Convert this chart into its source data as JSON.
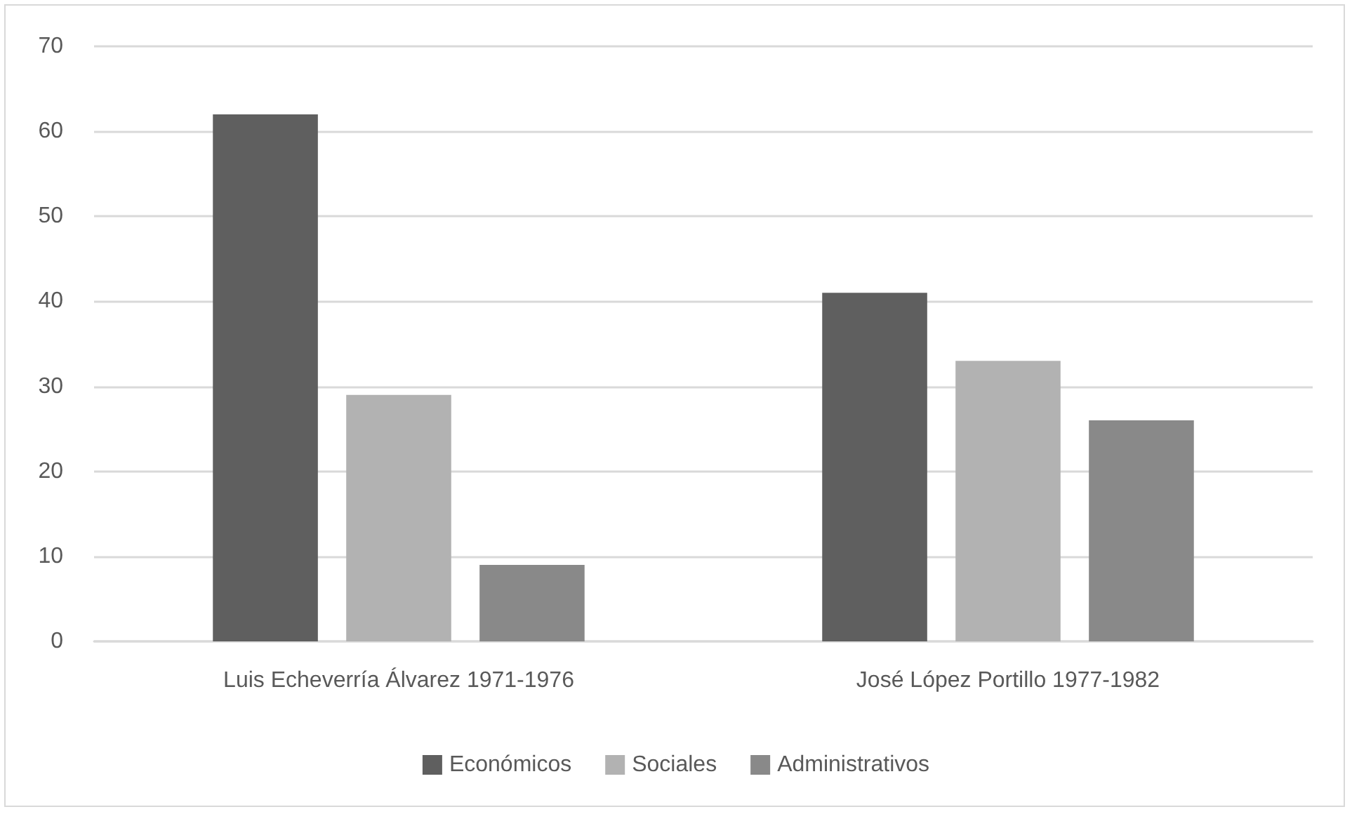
{
  "chart_data": {
    "type": "bar",
    "categories": [
      "Luis Echeverría Álvarez 1971-1976",
      "José López Portillo 1977-1982"
    ],
    "series": [
      {
        "name": "Económicos",
        "color": "#5f5f5f",
        "values": [
          62,
          41
        ]
      },
      {
        "name": "Sociales",
        "color": "#b2b2b2",
        "values": [
          29,
          33
        ]
      },
      {
        "name": "Administrativos",
        "color": "#898989",
        "values": [
          9,
          26
        ]
      }
    ],
    "ylim": [
      0,
      70
    ],
    "yticks": [
      0,
      10,
      20,
      30,
      40,
      50,
      60,
      70
    ],
    "grid": "y",
    "legend": "bottom"
  }
}
